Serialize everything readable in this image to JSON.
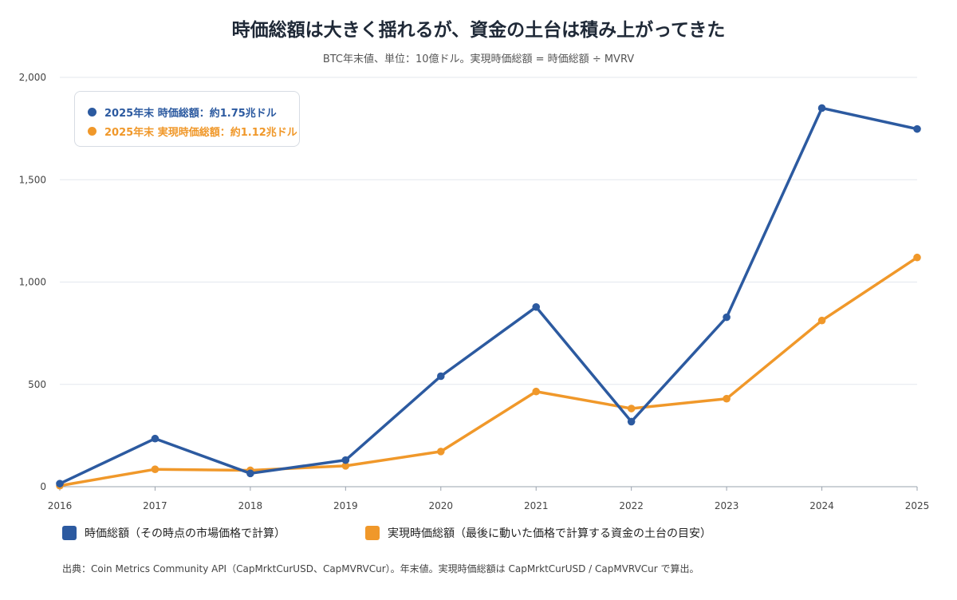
{
  "title": "時価総額は大きく揺れるが、資金の土台は積み上がってきた",
  "subtitle": "BTC年末値、単位：10億ドル。実現時価総額 = 時価総額 ÷ MVRV",
  "callout": {
    "market_cap": "2025年末 時価総額：約1.75兆ドル",
    "realized_cap": "2025年末 実現時価総額：約1.12兆ドル"
  },
  "legend": {
    "market_cap": "時価総額（その時点の市場価格で計算）",
    "realized_cap": "実現時価総額（最後に動いた価格で計算する資金の土台の目安）"
  },
  "source": "出典：Coin Metrics Community API（CapMrktCurUSD、CapMVRVCur）。年末値。実現時価総額は CapMrktCurUSD / CapMVRVCur で算出。",
  "colors": {
    "market_cap": "#2c5aa0",
    "realized_cap": "#f0982a",
    "grid": "#e3e7ee",
    "axis": "#9aa3ae"
  },
  "chart_data": {
    "type": "line",
    "x": [
      "2016",
      "2017",
      "2018",
      "2019",
      "2020",
      "2021",
      "2022",
      "2023",
      "2024",
      "2025"
    ],
    "ylim": [
      0,
      2000
    ],
    "yticks": [
      0,
      500,
      1000,
      1500,
      2000
    ],
    "ytick_labels": [
      "0",
      "500",
      "1,000",
      "1,500",
      "2,000"
    ],
    "grid": true,
    "legend_position": "bottom",
    "series": [
      {
        "name": "時価総額（その時点の市場価格で計算）",
        "key": "market_cap",
        "values": [
          15,
          235,
          65,
          130,
          540,
          878,
          318,
          828,
          1850,
          1748
        ]
      },
      {
        "name": "実現時価総額（最後に動いた価格で計算する資金の土台の目安）",
        "key": "realized_cap",
        "values": [
          5,
          85,
          80,
          102,
          172,
          465,
          382,
          430,
          812,
          1120
        ]
      }
    ]
  }
}
